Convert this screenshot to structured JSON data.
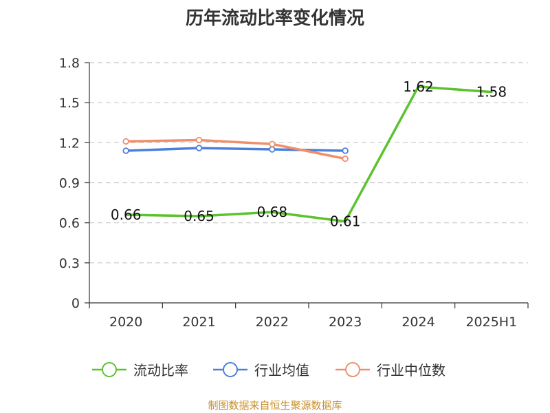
{
  "chart_data": {
    "type": "line",
    "title": "历年流动比率变化情况",
    "categories": [
      "2020",
      "2021",
      "2022",
      "2023",
      "2024",
      "2025H1"
    ],
    "y_ticks": [
      "0",
      "0.3",
      "0.6",
      "0.9",
      "1.2",
      "1.5",
      "1.8"
    ],
    "ylim": [
      0,
      1.8
    ],
    "grid": true,
    "legend_position": "bottom",
    "series": [
      {
        "name": "流动比率",
        "color": "#5cc22e",
        "markers": false,
        "values": [
          0.66,
          0.65,
          0.68,
          0.61,
          1.62,
          1.58
        ],
        "labels": [
          "0.66",
          "0.65",
          "0.68",
          "0.61",
          "1.62",
          "1.58"
        ]
      },
      {
        "name": "行业均值",
        "color": "#4a7fdc",
        "markers": true,
        "values": [
          1.14,
          1.16,
          1.15,
          1.14,
          null,
          null
        ]
      },
      {
        "name": "行业中位数",
        "color": "#f0906a",
        "markers": true,
        "values": [
          1.21,
          1.22,
          1.19,
          1.08,
          null,
          null
        ]
      }
    ]
  },
  "source_text": "制图数据来自恒生聚源数据库"
}
